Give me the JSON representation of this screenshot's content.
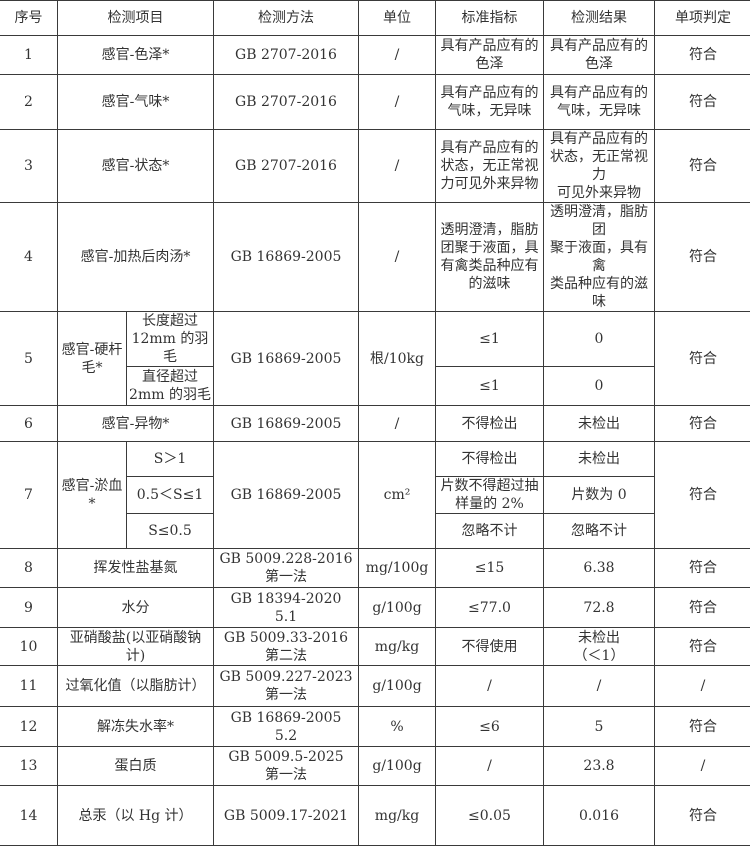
{
  "headers": [
    "序号",
    "检测项目",
    "检测方法",
    "单位",
    "标准指标",
    "检测结果",
    "单项判定"
  ],
  "rows": [
    {
      "no": "1",
      "item": "感官-色泽*",
      "method": "GB 2707-2016",
      "unit": "/",
      "standard": "具有产品应有的\n色泽",
      "result": "具有产品应有的\n色泽",
      "judgement": "符合"
    },
    {
      "no": "2",
      "item": "感官-气味*",
      "method": "GB 2707-2016",
      "unit": "/",
      "standard": "具有产品应有的\n气味，无异味",
      "result": "具有产品应有的\n气味，无异味",
      "judgement": "符合"
    },
    {
      "no": "3",
      "item": "感官-状态*",
      "method": "GB 2707-2016",
      "unit": "/",
      "standard": "具有产品应有的\n状态，无正常视\n力可见外来异物",
      "result": "具有产品应有的\n状态，无正常视力\n可见外来异物",
      "judgement": "符合"
    },
    {
      "no": "4",
      "item": "感官-加热后肉汤*",
      "method": "GB 16869-2005",
      "unit": "/",
      "standard": "透明澄清，脂肪\n团聚于液面，具\n有禽类品种应有\n的滋味",
      "result": "透明澄清，脂肪团\n聚于液面，具有禽\n类品种应有的滋\n味",
      "judgement": "符合"
    },
    {
      "no": "5",
      "item": "感官-硬杆\n毛*",
      "method": "GB 16869-2005",
      "unit": "根/10kg",
      "judgement": "符合",
      "sub": [
        {
          "label": "长度超过\n12mm 的羽毛",
          "standard": "≤1",
          "result": "0"
        },
        {
          "label": "直径超过\n2mm 的羽毛",
          "standard": "≤1",
          "result": "0"
        }
      ]
    },
    {
      "no": "6",
      "item": "感官-异物*",
      "method": "GB 16869-2005",
      "unit": "/",
      "standard": "不得检出",
      "result": "未检出",
      "judgement": "符合"
    },
    {
      "no": "7",
      "item": "感官-淤血\n*",
      "method": "GB 16869-2005",
      "unit": "cm²",
      "judgement": "符合",
      "sub": [
        {
          "label": "S＞1",
          "standard": "不得检出",
          "result": "未检出"
        },
        {
          "label": "0.5＜S≤1",
          "standard": "片数不得超过抽\n样量的 2%",
          "result": "片数为 0"
        },
        {
          "label": "S≤0.5",
          "standard": "忽略不计",
          "result": "忽略不计"
        }
      ]
    },
    {
      "no": "8",
      "item": "挥发性盐基氮",
      "method": "GB 5009.228-2016\n第一法",
      "unit": "mg/100g",
      "standard": "≤15",
      "result": "6.38",
      "judgement": "符合"
    },
    {
      "no": "9",
      "item": "水分",
      "method": "GB 18394-2020\n5.1",
      "unit": "g/100g",
      "standard": "≤77.0",
      "result": "72.8",
      "judgement": "符合"
    },
    {
      "no": "10",
      "item": "亚硝酸盐(以亚硝酸钠\n计)",
      "method": "GB 5009.33-2016\n第二法",
      "unit": "mg/kg",
      "standard": "不得使用",
      "result": "未检出\n（＜1）",
      "judgement": "符合"
    },
    {
      "no": "11",
      "item": "过氧化值（以脂肪计）",
      "method": "GB 5009.227-2023\n第一法",
      "unit": "g/100g",
      "standard": "/",
      "result": "/",
      "judgement": "/"
    },
    {
      "no": "12",
      "item": "解冻失水率*",
      "method": "GB 16869-2005\n5.2",
      "unit": "%",
      "standard": "≤6",
      "result": "5",
      "judgement": "符合"
    },
    {
      "no": "13",
      "item": "蛋白质",
      "method": "GB 5009.5-2025\n第一法",
      "unit": "g/100g",
      "standard": "/",
      "result": "23.8",
      "judgement": "/"
    },
    {
      "no": "14",
      "item": "总汞（以 Hg 计）",
      "method": "GB 5009.17-2021",
      "unit": "mg/kg",
      "standard": "≤0.05",
      "result": "0.016",
      "judgement": "符合"
    }
  ]
}
